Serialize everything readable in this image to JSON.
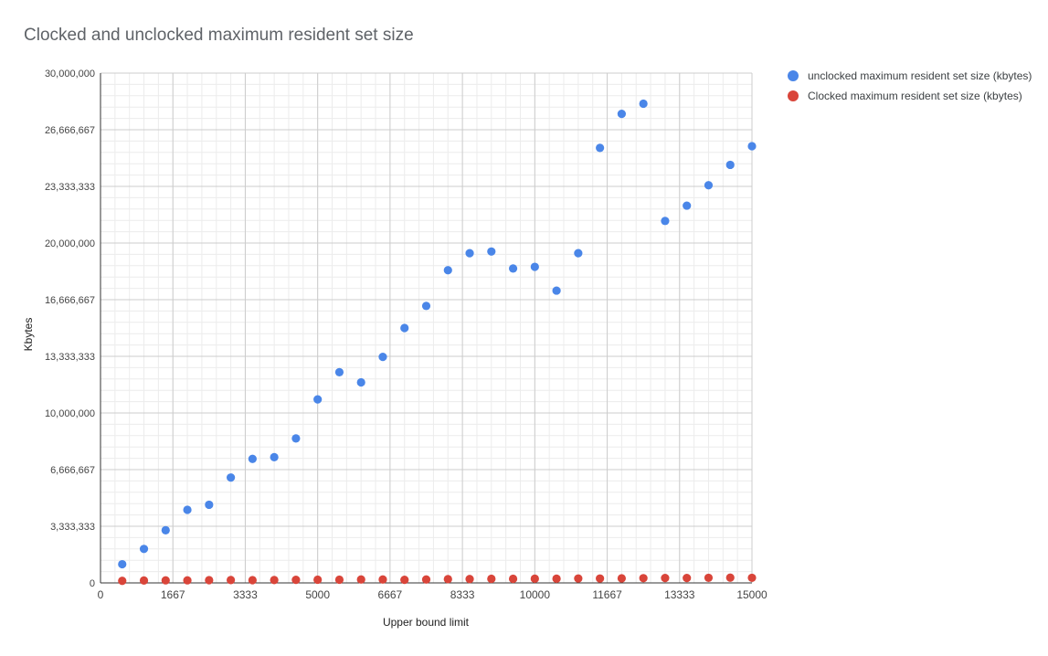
{
  "chart_data": {
    "type": "scatter",
    "title": "Clocked and unclocked maximum resident set size",
    "xlabel": "Upper bound limit",
    "ylabel": "Kbytes",
    "xlim": [
      0,
      15000
    ],
    "ylim": [
      0,
      30000000
    ],
    "x_ticks": [
      "0",
      "1667",
      "3333",
      "5000",
      "6667",
      "8333",
      "10000",
      "11667",
      "13333",
      "15000"
    ],
    "y_ticks": [
      "0",
      "3,333,333",
      "6,666,667",
      "10,000,000",
      "13,333,333",
      "16,666,667",
      "20,000,000",
      "23,333,333",
      "26,666,667",
      "30,000,000"
    ],
    "grid": true,
    "legend_position": "right",
    "x": [
      500,
      1000,
      1500,
      2000,
      2500,
      3000,
      3500,
      4000,
      4500,
      5000,
      5500,
      6000,
      6500,
      7000,
      7500,
      8000,
      8500,
      9000,
      9500,
      10000,
      10500,
      11000,
      11500,
      12000,
      12500,
      13000,
      13500,
      14000,
      14500,
      15000
    ],
    "series": [
      {
        "name": "unclocked maximum resident set size (kbytes)",
        "color": "#4a86e8",
        "values": [
          1100000,
          2000000,
          3100000,
          4300000,
          4600000,
          6200000,
          7300000,
          7400000,
          8500000,
          10800000,
          12400000,
          11800000,
          13300000,
          15000000,
          16300000,
          18400000,
          19400000,
          19500000,
          18500000,
          18600000,
          17200000,
          19400000,
          25600000,
          27600000,
          28200000,
          21300000,
          22200000,
          23400000,
          24600000,
          25700000
        ]
      },
      {
        "name": "Clocked maximum resident set size (kbytes)",
        "color": "#d9453a",
        "values": [
          120000,
          140000,
          150000,
          150000,
          160000,
          170000,
          160000,
          170000,
          180000,
          190000,
          190000,
          200000,
          200000,
          180000,
          200000,
          220000,
          230000,
          240000,
          240000,
          250000,
          250000,
          260000,
          260000,
          270000,
          280000,
          290000,
          290000,
          300000,
          310000,
          300000
        ]
      }
    ]
  }
}
